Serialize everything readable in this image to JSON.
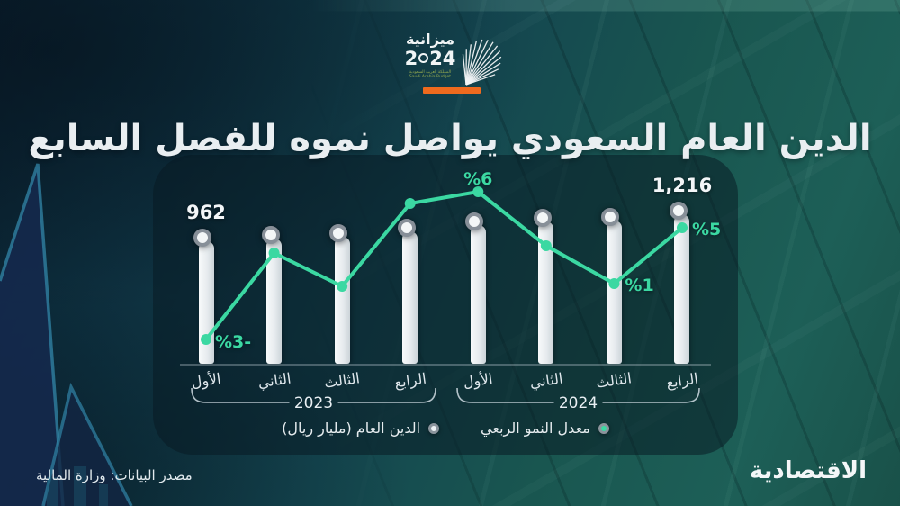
{
  "logo": {
    "title": "ميزانية",
    "year_prefix": "2",
    "year_suffix": "24",
    "subtext_line1": "المملكة العربية السعودية",
    "subtext_line2": "Saudi Arabia Budget"
  },
  "header": {
    "title": "الدين العام السعودي يواصل نموه للفصل السابع",
    "accent_color": "#ee6a1e"
  },
  "chart_data": {
    "type": "combo",
    "categories": [
      "الأول",
      "الثاني",
      "الثالث",
      "الرابع",
      "الأول",
      "الثاني",
      "الثالث",
      "الرابع"
    ],
    "year_groups": [
      {
        "label": "2023",
        "from": 0,
        "to": 3
      },
      {
        "label": "2024",
        "from": 4,
        "to": 7
      }
    ],
    "series": [
      {
        "name": "الدين العام (مليار ريال)",
        "type": "bar",
        "color": "#eef2f4",
        "values": [
          962,
          991,
          1001,
          1051,
          1114,
          1147,
          1159,
          1216
        ],
        "value_labels": {
          "0": "962",
          "7": "1,216"
        }
      },
      {
        "name": "معدل النمو الربعي",
        "type": "line",
        "color": "#3bd8a2",
        "values": [
          -3,
          3,
          1,
          5,
          6,
          3,
          1,
          5
        ],
        "value_labels": {
          "0": "%3-",
          "4": "%6",
          "6": "%1",
          "7": "%5"
        }
      }
    ],
    "title": "الدين العام السعودي يواصل نموه للفصل السابع",
    "xlabel": "",
    "ylabel": "",
    "grid": false,
    "legend_position": "bottom"
  },
  "legend": [
    {
      "label": "معدل النمو الربعي",
      "color": "#3bd8a2"
    },
    {
      "label": "الدين العام (مليار ريال)",
      "color": "#eef2f4"
    }
  ],
  "footer": {
    "source": "مصدر البيانات: وزارة المالية",
    "brand": "الاقتصادية"
  }
}
